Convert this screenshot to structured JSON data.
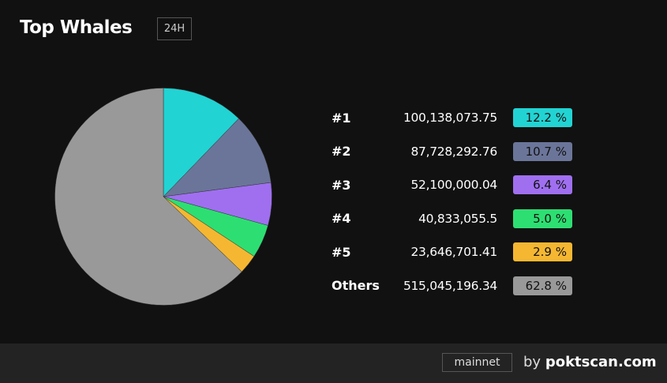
{
  "header": {
    "title": "Top Whales",
    "period": "24H"
  },
  "chart_data": {
    "type": "pie",
    "categories": [
      "#1",
      "#2",
      "#3",
      "#4",
      "#5",
      "Others"
    ],
    "values": [
      100138073.75,
      87728292.76,
      52100000.04,
      40833055.5,
      23646701.41,
      515045196.34
    ],
    "values_text": [
      "100,138,073.75",
      "87,728,292.76",
      "52,100,000.04",
      "40,833,055.5",
      "23,646,701.41",
      "515,045,196.34"
    ],
    "percent_text": [
      "12.2 %",
      "10.7 %",
      "6.4 %",
      "5.0 %",
      "2.9 %",
      "62.8 %"
    ],
    "colors": [
      "#22d3d3",
      "#6b7599",
      "#9f6ff0",
      "#2ddf72",
      "#f5b731",
      "#999999"
    ]
  },
  "footer": {
    "network": "mainnet",
    "by": "by",
    "brand": "poktscan.com"
  }
}
